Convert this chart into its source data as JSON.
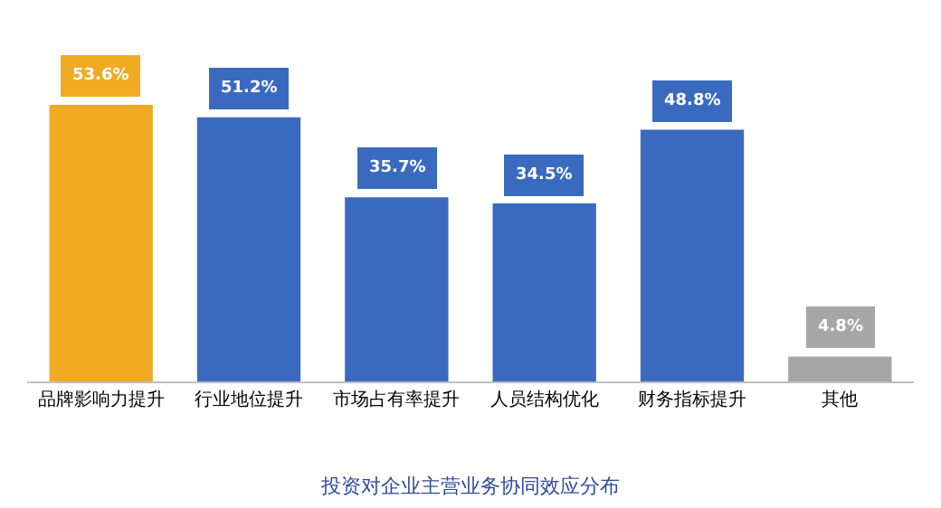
{
  "chart_data": {
    "type": "bar",
    "title": "投资对企业主营业务协同效应分布",
    "categories": [
      "品牌影响力提升",
      "行业地位提升",
      "市场占有率提升",
      "人员结构优化",
      "财务指标提升",
      "其他"
    ],
    "values": [
      53.6,
      51.2,
      35.7,
      34.5,
      48.8,
      4.8
    ],
    "value_labels": [
      "53.6%",
      "51.2%",
      "35.7%",
      "34.5%",
      "48.8%",
      "4.8%"
    ],
    "colors": [
      "#f0ab22",
      "#3a6abf",
      "#3a6abf",
      "#3a6abf",
      "#3a6abf",
      "#a6a6a6"
    ],
    "legend": false
  }
}
